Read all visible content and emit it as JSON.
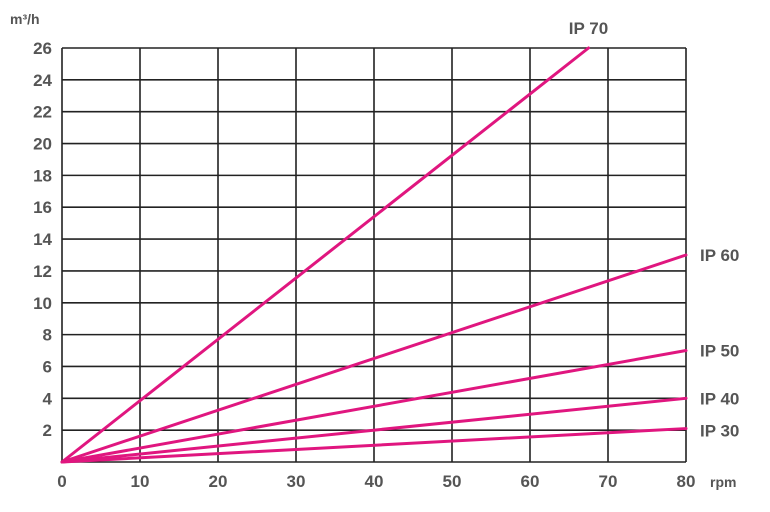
{
  "chart_data": {
    "type": "line",
    "ylabel": "m³/h",
    "xlabel": "rpm",
    "xlim": [
      0,
      80
    ],
    "ylim": [
      0,
      26
    ],
    "x_ticks": [
      0,
      10,
      20,
      30,
      40,
      50,
      60,
      70,
      80
    ],
    "y_ticks": [
      2,
      4,
      6,
      8,
      10,
      12,
      14,
      16,
      18,
      20,
      22,
      24,
      26
    ],
    "grid": true,
    "line_color": "#e0167f",
    "series": [
      {
        "name": "IP 70",
        "x": [
          0,
          67.5
        ],
        "y": [
          0,
          26
        ]
      },
      {
        "name": "IP 60",
        "x": [
          0,
          80
        ],
        "y": [
          0,
          13
        ]
      },
      {
        "name": "IP 50",
        "x": [
          0,
          80
        ],
        "y": [
          0,
          7
        ]
      },
      {
        "name": "IP 40",
        "x": [
          0,
          80
        ],
        "y": [
          0,
          4
        ]
      },
      {
        "name": "IP 30",
        "x": [
          0,
          80
        ],
        "y": [
          0,
          2.1
        ]
      }
    ]
  }
}
